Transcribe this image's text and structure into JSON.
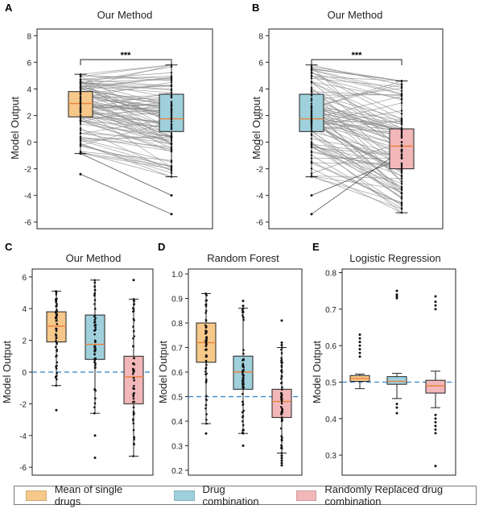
{
  "colors": {
    "single": "#f6c88a",
    "combo": "#9fd0dc",
    "random": "#f2b7b9",
    "median": "#e8823a",
    "dashed": "#2e7fc8",
    "pairline": "#8e8e8e"
  },
  "legend": {
    "single": "Mean of single drugs",
    "combo": "Drug combination",
    "random": "Randomly Replaced drug combination"
  },
  "chart_data": [
    {
      "panel": "A",
      "type": "box-paired",
      "title": "Our Method",
      "ylabel": "Model Output",
      "ylim": [
        -6.5,
        8.5
      ],
      "yticks": [
        -6,
        -4,
        -2,
        0,
        2,
        4,
        6,
        8
      ],
      "significance": "***",
      "boxes": [
        {
          "series": "Mean of single drugs",
          "q1": 1.9,
          "median": 2.9,
          "q3": 3.8,
          "whisker_low": -0.85,
          "whisker_high": 5.1
        },
        {
          "series": "Drug combination",
          "q1": 0.8,
          "median": 1.75,
          "q3": 3.6,
          "whisker_low": -2.6,
          "whisker_high": 5.8
        }
      ],
      "outliers_right": [
        -4.0,
        -5.4
      ]
    },
    {
      "panel": "B",
      "type": "box-paired",
      "title": "Our Method",
      "ylabel": "Model Output",
      "ylim": [
        -6.5,
        8.5
      ],
      "yticks": [
        -6,
        -4,
        -2,
        0,
        2,
        4,
        6,
        8
      ],
      "significance": "***",
      "boxes": [
        {
          "series": "Drug combination",
          "q1": 0.8,
          "median": 1.75,
          "q3": 3.6,
          "whisker_low": -2.6,
          "whisker_high": 5.8
        },
        {
          "series": "Randomly Replaced drug combination",
          "q1": -2.0,
          "median": -0.3,
          "q3": 1.0,
          "whisker_low": -5.3,
          "whisker_high": 4.6
        }
      ],
      "outliers_left": [
        -4.0,
        -5.4
      ]
    },
    {
      "panel": "C",
      "type": "box",
      "title": "Our Method",
      "ylabel": "Model Output",
      "ylim": [
        -6.5,
        6.5
      ],
      "yticks": [
        -6,
        -4,
        -2,
        0,
        2,
        4,
        6
      ],
      "refline": 0,
      "boxes": [
        {
          "series": "Mean of single drugs",
          "q1": 1.9,
          "median": 2.9,
          "q3": 3.8,
          "whisker_low": -0.85,
          "whisker_high": 5.1,
          "outliers": [
            -2.4
          ]
        },
        {
          "series": "Drug combination",
          "q1": 0.8,
          "median": 1.75,
          "q3": 3.6,
          "whisker_low": -2.6,
          "whisker_high": 5.8,
          "outliers": [
            -4.0,
            -5.4
          ]
        },
        {
          "series": "Randomly Replaced drug combination",
          "q1": -2.0,
          "median": -0.3,
          "q3": 1.0,
          "whisker_low": -5.3,
          "whisker_high": 4.6,
          "outliers": [
            5.8
          ]
        }
      ]
    },
    {
      "panel": "D",
      "type": "box",
      "title": "Random Forest",
      "ylabel": "Model Output",
      "ylim": [
        0.18,
        1.02
      ],
      "yticks": [
        0.2,
        0.3,
        0.4,
        0.5,
        0.6,
        0.7,
        0.8,
        0.9,
        1.0
      ],
      "refline": 0.5,
      "boxes": [
        {
          "series": "Mean of single drugs",
          "q1": 0.64,
          "median": 0.72,
          "q3": 0.8,
          "whisker_low": 0.39,
          "whisker_high": 0.92,
          "outliers": [
            0.35
          ]
        },
        {
          "series": "Drug combination",
          "q1": 0.53,
          "median": 0.6,
          "q3": 0.665,
          "whisker_low": 0.35,
          "whisker_high": 0.86,
          "outliers": [
            0.89,
            0.87,
            0.3
          ]
        },
        {
          "series": "Randomly Replaced drug combination",
          "q1": 0.415,
          "median": 0.48,
          "q3": 0.53,
          "whisker_low": 0.27,
          "whisker_high": 0.7,
          "outliers": [
            0.81,
            0.72,
            0.71,
            0.26,
            0.25,
            0.24,
            0.23,
            0.22
          ]
        }
      ]
    },
    {
      "panel": "E",
      "type": "box",
      "title": "Logistic Regression",
      "ylabel": "Model Output",
      "ylim": [
        0.245,
        0.81
      ],
      "yticks": [
        0.3,
        0.4,
        0.5,
        0.6,
        0.7,
        0.8
      ],
      "refline": 0.5,
      "boxes": [
        {
          "series": "Mean of single drugs",
          "q1": 0.502,
          "median": 0.51,
          "q3": 0.518,
          "whisker_low": 0.482,
          "whisker_high": 0.522,
          "outliers": [
            0.63,
            0.62,
            0.61,
            0.6,
            0.59,
            0.58,
            0.57
          ]
        },
        {
          "series": "Drug combination",
          "q1": 0.494,
          "median": 0.502,
          "q3": 0.515,
          "whisker_low": 0.455,
          "whisker_high": 0.524,
          "outliers": [
            0.75,
            0.74,
            0.735,
            0.73,
            0.44,
            0.43,
            0.415
          ]
        },
        {
          "series": "Randomly Replaced drug combination",
          "q1": 0.47,
          "median": 0.49,
          "q3": 0.505,
          "whisker_low": 0.43,
          "whisker_high": 0.53,
          "outliers": [
            0.735,
            0.72,
            0.71,
            0.7,
            0.41,
            0.4,
            0.39,
            0.38,
            0.37,
            0.36,
            0.27
          ]
        }
      ]
    }
  ]
}
